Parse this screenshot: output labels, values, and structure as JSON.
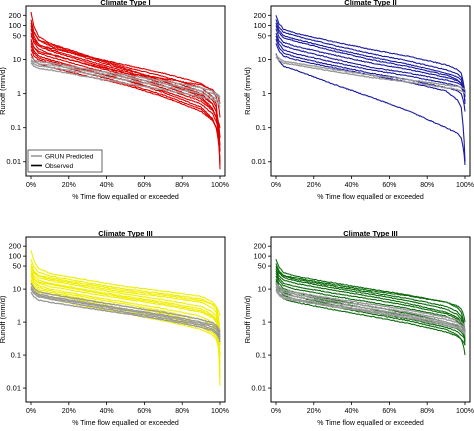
{
  "legend": {
    "predicted_label": "GRUN Predicted",
    "observed_label": "Observed",
    "predicted_color": "#999999",
    "observed_color": "#000000"
  },
  "chart_data": [
    {
      "type": "line",
      "title": "Climate Type I",
      "xlabel": "% Time flow equalled or exceeded",
      "ylabel": "Runoff (mm/d)",
      "xlim": [
        0,
        100
      ],
      "ylim": [
        0.005,
        250
      ],
      "yscale": "log",
      "x_ticks": [
        "0%",
        "20%",
        "40%",
        "60%",
        "80%",
        "100%"
      ],
      "y_ticks": [
        "0.01",
        "0.1",
        "1",
        "10",
        "50",
        "100",
        "200"
      ],
      "observed_color": "#dd0000",
      "predicted_color": "#999999",
      "legend_position": "bottom-left",
      "observed_curves": [
        {
          "start": 250,
          "q10": 30,
          "q50": 6,
          "q90": 1.5,
          "q98": 0.5,
          "end": 0.006
        },
        {
          "start": 150,
          "q10": 25,
          "q50": 5,
          "q90": 1.2,
          "q98": 0.4,
          "end": 0.02
        },
        {
          "start": 100,
          "q10": 20,
          "q50": 4.5,
          "q90": 1.0,
          "q98": 0.3,
          "end": 0.01
        },
        {
          "start": 80,
          "q10": 18,
          "q50": 4,
          "q90": 0.9,
          "q98": 0.3,
          "end": 0.05
        },
        {
          "start": 60,
          "q10": 15,
          "q50": 3.5,
          "q90": 0.7,
          "q98": 0.2,
          "end": 0.1
        },
        {
          "start": 40,
          "q10": 12,
          "q50": 3,
          "q90": 0.6,
          "q98": 0.2,
          "end": 0.03
        },
        {
          "start": 50,
          "q10": 22,
          "q50": 7,
          "q90": 2,
          "q98": 0.8,
          "end": 0.2
        },
        {
          "start": 30,
          "q10": 10,
          "q50": 2.5,
          "q90": 0.5,
          "q98": 0.15,
          "end": 0.05
        },
        {
          "start": 25,
          "q10": 9,
          "q50": 2.5,
          "q90": 0.4,
          "q98": 0.1,
          "end": 0.01
        },
        {
          "start": 20,
          "q10": 8,
          "q50": 2,
          "q90": 0.35,
          "q98": 0.1,
          "end": 0.02
        },
        {
          "start": 120,
          "q10": 28,
          "q50": 5.5,
          "q90": 0.8,
          "q98": 0.2,
          "end": 0.008
        },
        {
          "start": 35,
          "q10": 14,
          "q50": 4,
          "q90": 1.8,
          "q98": 1.0,
          "end": 0.5
        },
        {
          "start": 15,
          "q10": 6,
          "q50": 1.8,
          "q90": 0.3,
          "q98": 0.1,
          "end": 0.05
        }
      ],
      "predicted_curves": [
        {
          "start": 10,
          "q10": 7,
          "q50": 3,
          "q90": 1.2,
          "q98": 0.9,
          "end": 0.7
        },
        {
          "start": 9,
          "q10": 6,
          "q50": 2.5,
          "q90": 1.0,
          "q98": 0.7,
          "end": 0.5
        },
        {
          "start": 12,
          "q10": 8,
          "q50": 3.5,
          "q90": 1.5,
          "q98": 1.0,
          "end": 0.8
        },
        {
          "start": 8,
          "q10": 5,
          "q50": 2,
          "q90": 0.8,
          "q98": 0.6,
          "end": 0.4
        }
      ]
    },
    {
      "type": "line",
      "title": "Climate Type II",
      "xlabel": "% Time flow equalled or exceeded",
      "ylabel": "Runoff (mm/d)",
      "xlim": [
        0,
        100
      ],
      "ylim": [
        0.005,
        250
      ],
      "yscale": "log",
      "x_ticks": [
        "0%",
        "20%",
        "40%",
        "60%",
        "80%",
        "100%"
      ],
      "y_ticks": [
        "0.01",
        "0.1",
        "1",
        "10",
        "50",
        "100",
        "200"
      ],
      "observed_color": "#1a1aa0",
      "predicted_color": "#999999",
      "observed_curves": [
        {
          "start": 200,
          "q10": 60,
          "q50": 20,
          "q90": 7,
          "q98": 4,
          "end": 0.8
        },
        {
          "start": 150,
          "q10": 50,
          "q50": 15,
          "q90": 5,
          "q98": 3,
          "end": 1.0
        },
        {
          "start": 120,
          "q10": 40,
          "q50": 12,
          "q90": 4,
          "q98": 2.5,
          "end": 0.5
        },
        {
          "start": 100,
          "q10": 35,
          "q50": 10,
          "q90": 3.5,
          "q98": 2,
          "end": 0.6
        },
        {
          "start": 80,
          "q10": 25,
          "q50": 8,
          "q90": 3,
          "q98": 2,
          "end": 1.2
        },
        {
          "start": 60,
          "q10": 20,
          "q50": 6,
          "q90": 2.5,
          "q98": 1.8,
          "end": 1.0
        },
        {
          "start": 50,
          "q10": 15,
          "q50": 5,
          "q90": 2,
          "q98": 1.5,
          "end": 0.8
        },
        {
          "start": 40,
          "q10": 12,
          "q50": 4,
          "q90": 1.5,
          "q98": 1.0,
          "end": 0.3
        },
        {
          "start": 30,
          "q10": 10,
          "q50": 3.5,
          "q90": 1.2,
          "q98": 0.4,
          "end": 0.01
        },
        {
          "start": 15,
          "q10": 5,
          "q50": 0.8,
          "q90": 0.1,
          "q98": 0.05,
          "end": 0.008
        }
      ],
      "predicted_curves": [
        {
          "start": 14,
          "q10": 8,
          "q50": 3.5,
          "q90": 1.8,
          "q98": 1.5,
          "end": 1.3
        },
        {
          "start": 12,
          "q10": 7,
          "q50": 3,
          "q90": 1.5,
          "q98": 1.2,
          "end": 1.0
        }
      ]
    },
    {
      "type": "line",
      "title": "Climate Type III",
      "xlabel": "% Time flow equalled or exceeded",
      "ylabel": "Runoff (mm/d)",
      "xlim": [
        0,
        100
      ],
      "ylim": [
        0.005,
        250
      ],
      "yscale": "log",
      "x_ticks": [
        "0%",
        "20%",
        "40%",
        "60%",
        "80%",
        "100%"
      ],
      "y_ticks": [
        "0.01",
        "0.1",
        "1",
        "10",
        "50",
        "100",
        "200"
      ],
      "observed_color": "#f0ee00",
      "predicted_color": "#999999",
      "observed_curves": [
        {
          "start": 150,
          "q10": 30,
          "q50": 12,
          "q90": 6,
          "q98": 3,
          "end": 0.5
        },
        {
          "start": 80,
          "q10": 25,
          "q50": 10,
          "q90": 5,
          "q98": 2.5,
          "end": 0.3
        },
        {
          "start": 60,
          "q10": 20,
          "q50": 8,
          "q90": 4,
          "q98": 2,
          "end": 0.2
        },
        {
          "start": 50,
          "q10": 18,
          "q50": 7,
          "q90": 3,
          "q98": 1.5,
          "end": 0.1
        },
        {
          "start": 40,
          "q10": 15,
          "q50": 6,
          "q90": 2.5,
          "q98": 1.2,
          "end": 0.05
        },
        {
          "start": 35,
          "q10": 12,
          "q50": 5,
          "q90": 2,
          "q98": 1.0,
          "end": 0.02
        },
        {
          "start": 30,
          "q10": 10,
          "q50": 4,
          "q90": 1.5,
          "q98": 0.7,
          "end": 0.03
        },
        {
          "start": 25,
          "q10": 9,
          "q50": 3.5,
          "q90": 1.2,
          "q98": 0.6,
          "end": 0.1
        },
        {
          "start": 20,
          "q10": 8,
          "q50": 3,
          "q90": 1.0,
          "q98": 0.5,
          "end": 0.15
        },
        {
          "start": 18,
          "q10": 7,
          "q50": 2.5,
          "q90": 0.8,
          "q98": 0.4,
          "end": 0.2
        },
        {
          "start": 15,
          "q10": 6,
          "q50": 2.2,
          "q90": 0.7,
          "q98": 0.35,
          "end": 0.1
        },
        {
          "start": 45,
          "q10": 22,
          "q50": 9,
          "q90": 4.5,
          "q98": 3,
          "end": 1.5
        },
        {
          "start": 12,
          "q10": 5,
          "q50": 1.8,
          "q90": 0.6,
          "q98": 0.3,
          "end": 0.08
        },
        {
          "start": 28,
          "q10": 14,
          "q50": 5.5,
          "q90": 2.2,
          "q98": 1.1,
          "end": 0.012
        }
      ],
      "predicted_curves": [
        {
          "start": 15,
          "q10": 7,
          "q50": 3,
          "q90": 1.2,
          "q98": 0.8,
          "end": 0.5
        },
        {
          "start": 12,
          "q10": 6,
          "q50": 2.5,
          "q90": 1.0,
          "q98": 0.7,
          "end": 0.4
        },
        {
          "start": 10,
          "q10": 5,
          "q50": 2,
          "q90": 0.8,
          "q98": 0.5,
          "end": 0.3
        },
        {
          "start": 8,
          "q10": 4,
          "q50": 1.8,
          "q90": 0.7,
          "q98": 0.45,
          "end": 0.25
        },
        {
          "start": 11,
          "q10": 5.5,
          "q50": 2.3,
          "q90": 0.9,
          "q98": 0.6,
          "end": 0.35
        }
      ]
    },
    {
      "type": "line",
      "title": "Climate Type III",
      "xlabel": "% Time flow equalled or exceeded",
      "ylabel": "Runoff (mm/d)",
      "xlim": [
        0,
        100
      ],
      "ylim": [
        0.005,
        250
      ],
      "yscale": "log",
      "x_ticks": [
        "0%",
        "20%",
        "40%",
        "60%",
        "80%",
        "100%"
      ],
      "y_ticks": [
        "0.01",
        "0.1",
        "1",
        "10",
        "50",
        "100",
        "200"
      ],
      "observed_color": "#0d6b0d",
      "predicted_color": "#999999",
      "observed_curves": [
        {
          "start": 80,
          "q10": 25,
          "q50": 10,
          "q90": 4,
          "q98": 2,
          "end": 0.5
        },
        {
          "start": 60,
          "q10": 20,
          "q50": 8,
          "q90": 3,
          "q98": 1.5,
          "end": 0.4
        },
        {
          "start": 50,
          "q10": 18,
          "q50": 7,
          "q90": 2.5,
          "q98": 1.2,
          "end": 0.3
        },
        {
          "start": 40,
          "q10": 15,
          "q50": 6,
          "q90": 2,
          "q98": 1.0,
          "end": 0.25
        },
        {
          "start": 35,
          "q10": 12,
          "q50": 5,
          "q90": 1.8,
          "q98": 0.9,
          "end": 0.2
        },
        {
          "start": 30,
          "q10": 10,
          "q50": 4,
          "q90": 1.5,
          "q98": 0.8,
          "end": 0.5
        },
        {
          "start": 25,
          "q10": 8,
          "q50": 3,
          "q90": 1.0,
          "q98": 0.6,
          "end": 0.4
        },
        {
          "start": 20,
          "q10": 7,
          "q50": 2.5,
          "q90": 0.8,
          "q98": 0.5,
          "end": 0.3
        },
        {
          "start": 18,
          "q10": 6,
          "q50": 2,
          "q90": 0.7,
          "q98": 0.4,
          "end": 0.3
        },
        {
          "start": 15,
          "q10": 5,
          "q50": 1.8,
          "q90": 0.6,
          "q98": 0.3,
          "end": 0.1
        },
        {
          "start": 45,
          "q10": 22,
          "q50": 9,
          "q90": 4,
          "q98": 2.5,
          "end": 1.0
        },
        {
          "start": 12,
          "q10": 4,
          "q50": 1.5,
          "q90": 0.5,
          "q98": 0.3,
          "end": 0.2
        }
      ],
      "predicted_curves": [
        {
          "start": 14,
          "q10": 7,
          "q50": 3,
          "q90": 1.2,
          "q98": 0.8,
          "end": 0.6
        },
        {
          "start": 12,
          "q10": 6,
          "q50": 2.5,
          "q90": 1.0,
          "q98": 0.7,
          "end": 0.5
        },
        {
          "start": 10,
          "q10": 5,
          "q50": 2.2,
          "q90": 0.9,
          "q98": 0.6,
          "end": 0.45
        },
        {
          "start": 9,
          "q10": 4.5,
          "q50": 2,
          "q90": 0.8,
          "q98": 0.55,
          "end": 0.4
        },
        {
          "start": 16,
          "q10": 8,
          "q50": 3.5,
          "q90": 1.4,
          "q98": 1.0,
          "end": 0.7
        }
      ]
    }
  ]
}
